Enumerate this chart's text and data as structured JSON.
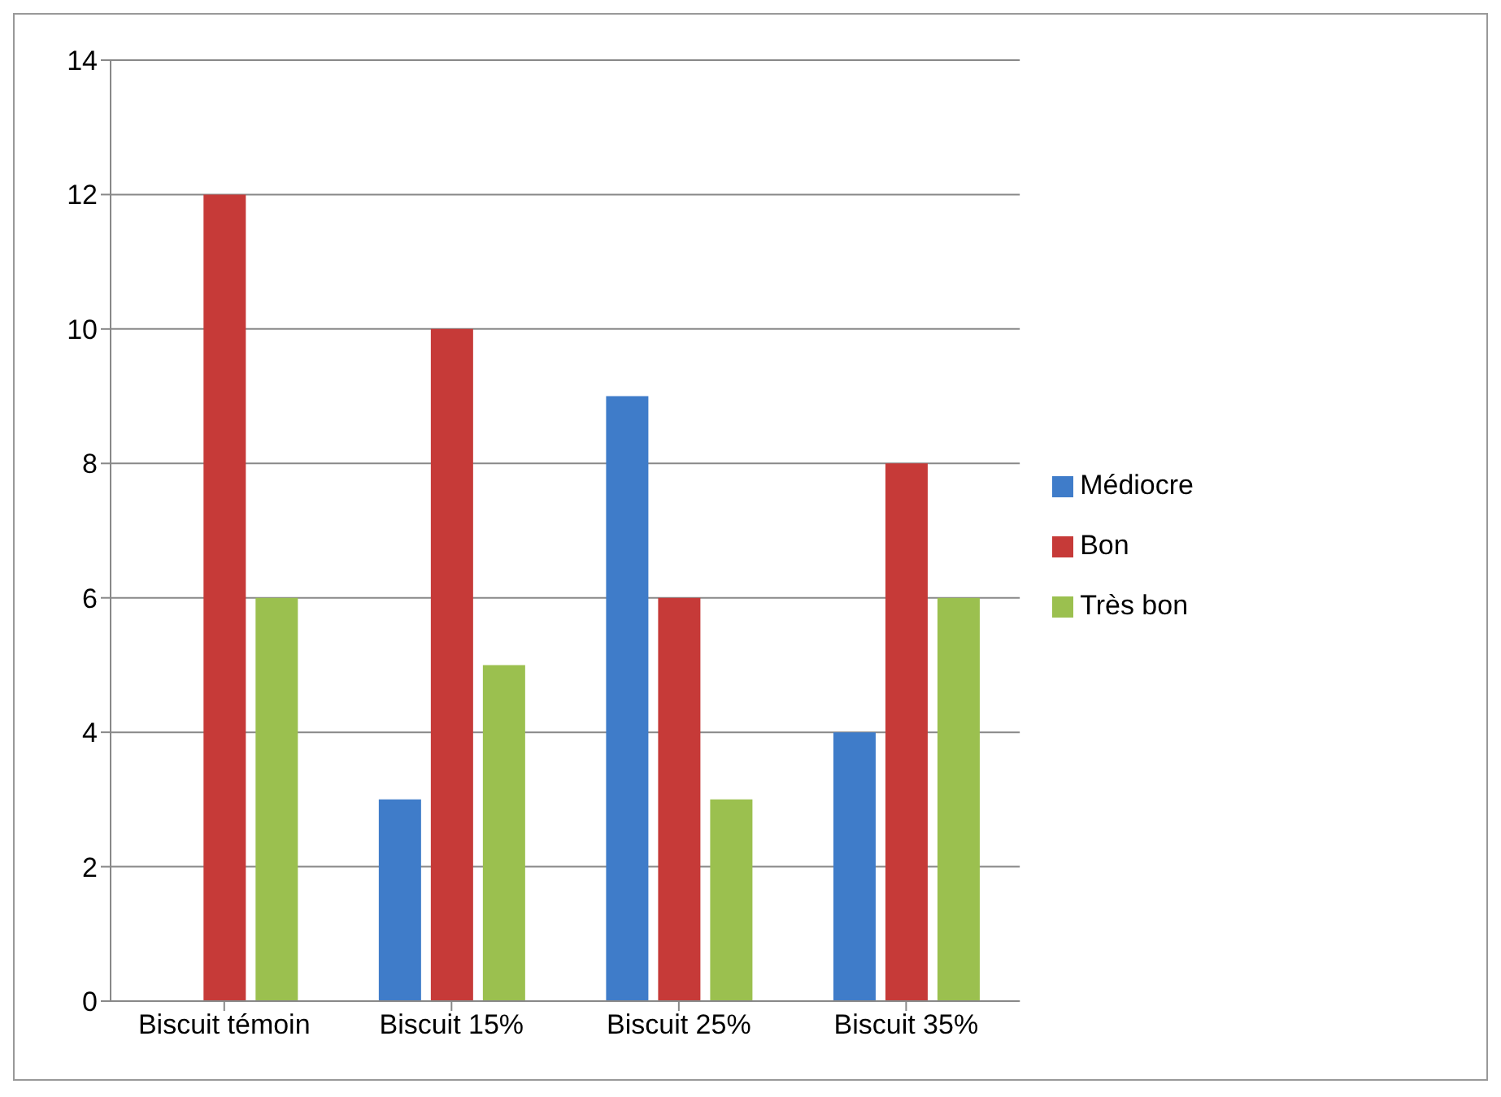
{
  "chart_data": {
    "type": "bar",
    "categories": [
      "Biscuit témoin",
      "Biscuit 15%",
      "Biscuit 25%",
      "Biscuit 35%"
    ],
    "series": [
      {
        "name": "Médiocre",
        "color": "#3f7cc9",
        "values": [
          0,
          3,
          9,
          4
        ]
      },
      {
        "name": "Bon",
        "color": "#c63a38",
        "values": [
          12,
          10,
          6,
          8
        ]
      },
      {
        "name": "Très bon",
        "color": "#9bc04f",
        "values": [
          6,
          5,
          3,
          6
        ]
      }
    ],
    "ylim": [
      0,
      14
    ],
    "yticks": [
      0,
      2,
      4,
      6,
      8,
      10,
      12,
      14
    ],
    "grid": "y",
    "legend": "right"
  }
}
